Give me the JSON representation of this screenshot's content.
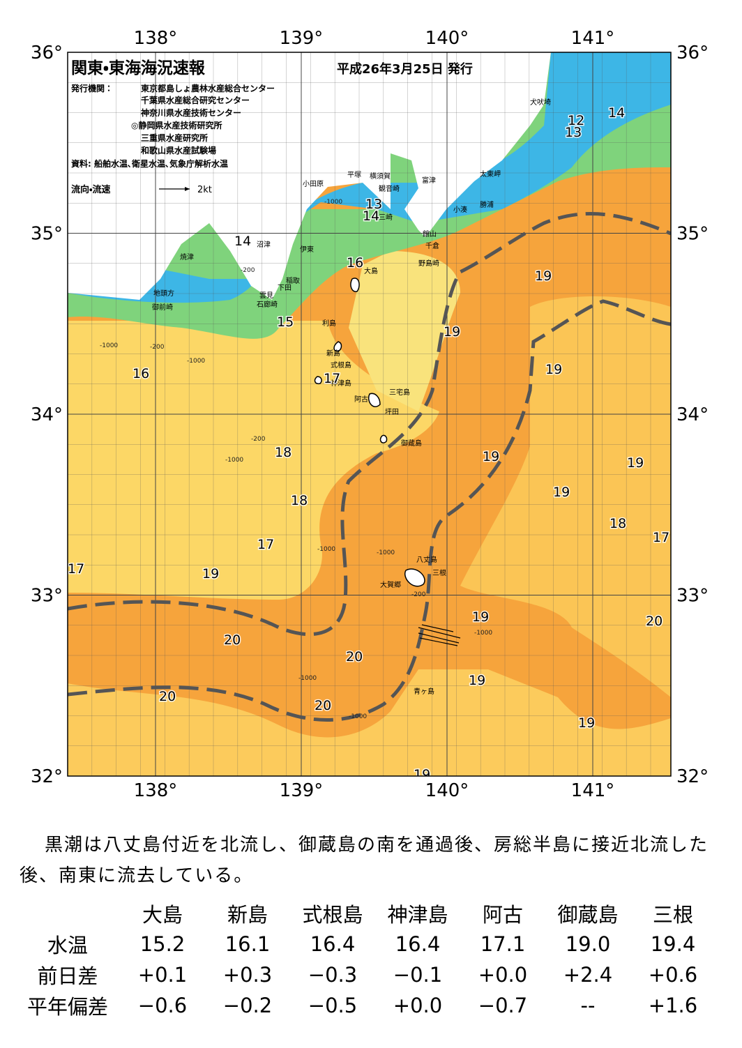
{
  "header": {
    "title": "関東・東海海況速報",
    "date": "平成26年3月25日 発行",
    "issuer_label": "発行機関：",
    "issuers": [
      "東京都島しょ農林水産総合センター",
      "千葉県水産総合研究センター",
      "神奈川県水産技術センター",
      "◎静岡県水産技術研究所",
      "三重県水産研究所",
      "和歌山県水産試験場"
    ],
    "source": "資料: 船舶水温､衛星水温､気象庁解析水温",
    "legend_label": "流向・流速",
    "legend_scale": "2kt"
  },
  "map": {
    "lon_ticks": [
      {
        "value": 138,
        "label": "138°"
      },
      {
        "value": 139,
        "label": "139°"
      },
      {
        "value": 140,
        "label": "140°"
      },
      {
        "value": 141,
        "label": "141°"
      }
    ],
    "lat_ticks": [
      {
        "value": 32,
        "label": "32°"
      },
      {
        "value": 33,
        "label": "33°"
      },
      {
        "value": 34,
        "label": "34°"
      },
      {
        "value": 35,
        "label": "35°"
      },
      {
        "value": 36,
        "label": "36°"
      }
    ],
    "places": [
      "犬吠埼",
      "太東岬",
      "勝浦",
      "小湊",
      "富津",
      "館山",
      "千倉",
      "野島崎",
      "観音崎",
      "横須賀",
      "平塚",
      "三崎",
      "小田原",
      "沼津",
      "伊東",
      "稲取",
      "下田",
      "雲見",
      "石廊崎",
      "焼津",
      "地頭方",
      "御前崎",
      "大島",
      "利島",
      "新島",
      "式根島",
      "神津島",
      "三宅島",
      "阿古",
      "坪田",
      "御蔵島",
      "八丈島",
      "三根",
      "大賀郷",
      "青ヶ島"
    ],
    "contour_labels": [
      "14",
      "12",
      "13",
      "14",
      "13",
      "14",
      "16",
      "15",
      "16",
      "17",
      "18",
      "18",
      "17",
      "17",
      "19",
      "19",
      "19",
      "19",
      "19",
      "19",
      "19",
      "18",
      "17",
      "19",
      "20",
      "20",
      "20",
      "20",
      "20",
      "19",
      "19",
      "19"
    ],
    "depth_labels": [
      "-1000",
      "-200",
      "-1000",
      "-200",
      "-1000",
      "-1000",
      "-200",
      "-1000",
      "-1000",
      "-200",
      "-1000",
      "-1000",
      "-1000"
    ]
  },
  "comment": "黒潮は八丈島付近を北流し、御蔵島の南を通過後、房総半島に接近北流した後、南東に流去している。",
  "table": {
    "columns": [
      "大島",
      "新島",
      "式根島",
      "神津島",
      "阿古",
      "御蔵島",
      "三根"
    ],
    "rows": [
      {
        "label": "水温",
        "values": [
          "15.2",
          "16.1",
          "16.4",
          "16.4",
          "17.1",
          "19.0",
          "19.4"
        ]
      },
      {
        "label": "前日差",
        "values": [
          "+0.1",
          "+0.3",
          "−0.3",
          "−0.1",
          "+0.0",
          "+2.4",
          "+0.6"
        ]
      },
      {
        "label": "平年偏差",
        "values": [
          "−0.6",
          "−0.2",
          "−0.5",
          "+0.0",
          "−0.7",
          "--",
          "+1.6"
        ]
      }
    ]
  }
}
